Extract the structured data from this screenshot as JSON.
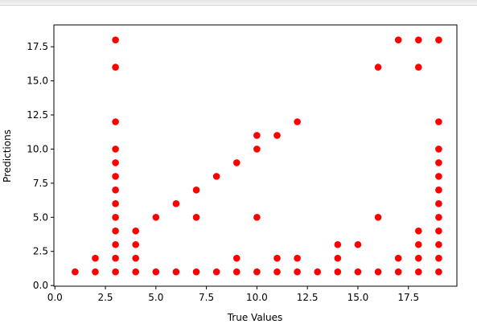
{
  "chart_data": {
    "type": "scatter",
    "title": "",
    "xlabel": "True Values",
    "ylabel": "Predictions",
    "xlim": [
      -0.05,
      19.9
    ],
    "ylim": [
      -0.05,
      19.1
    ],
    "xticks": [
      0.0,
      2.5,
      5.0,
      7.5,
      10.0,
      12.5,
      15.0,
      17.5
    ],
    "xtick_labels": [
      "0.0",
      "2.5",
      "5.0",
      "7.5",
      "10.0",
      "12.5",
      "15.0",
      "17.5"
    ],
    "yticks": [
      0.0,
      2.5,
      5.0,
      7.5,
      10.0,
      12.5,
      15.0,
      17.5
    ],
    "ytick_labels": [
      "0.0",
      "2.5",
      "5.0",
      "7.5",
      "10.0",
      "12.5",
      "15.0",
      "17.5"
    ],
    "grid": false,
    "marker_color": "#ff0000",
    "points": [
      [
        1,
        1
      ],
      [
        2,
        1
      ],
      [
        2,
        2
      ],
      [
        3,
        1
      ],
      [
        3,
        2
      ],
      [
        3,
        3
      ],
      [
        3,
        4
      ],
      [
        3,
        5
      ],
      [
        3,
        6
      ],
      [
        3,
        7
      ],
      [
        3,
        8
      ],
      [
        3,
        9
      ],
      [
        3,
        10
      ],
      [
        3,
        12
      ],
      [
        3,
        16
      ],
      [
        3,
        18
      ],
      [
        4,
        1
      ],
      [
        4,
        2
      ],
      [
        4,
        3
      ],
      [
        4,
        4
      ],
      [
        5,
        1
      ],
      [
        5,
        5
      ],
      [
        6,
        1
      ],
      [
        6,
        6
      ],
      [
        7,
        1
      ],
      [
        7,
        5
      ],
      [
        7,
        7
      ],
      [
        8,
        1
      ],
      [
        8,
        8
      ],
      [
        9,
        1
      ],
      [
        9,
        2
      ],
      [
        9,
        9
      ],
      [
        10,
        1
      ],
      [
        10,
        5
      ],
      [
        10,
        10
      ],
      [
        10,
        11
      ],
      [
        11,
        1
      ],
      [
        11,
        2
      ],
      [
        11,
        11
      ],
      [
        12,
        1
      ],
      [
        12,
        2
      ],
      [
        12,
        12
      ],
      [
        13,
        1
      ],
      [
        14,
        1
      ],
      [
        14,
        2
      ],
      [
        14,
        3
      ],
      [
        15,
        1
      ],
      [
        15,
        3
      ],
      [
        16,
        1
      ],
      [
        16,
        5
      ],
      [
        16,
        16
      ],
      [
        17,
        1
      ],
      [
        17,
        2
      ],
      [
        17,
        18
      ],
      [
        18,
        1
      ],
      [
        18,
        2
      ],
      [
        18,
        3
      ],
      [
        18,
        4
      ],
      [
        18,
        16
      ],
      [
        18,
        18
      ],
      [
        19,
        1
      ],
      [
        19,
        2
      ],
      [
        19,
        3
      ],
      [
        19,
        4
      ],
      [
        19,
        5
      ],
      [
        19,
        6
      ],
      [
        19,
        7
      ],
      [
        19,
        8
      ],
      [
        19,
        9
      ],
      [
        19,
        10
      ],
      [
        19,
        12
      ],
      [
        19,
        18
      ]
    ]
  }
}
